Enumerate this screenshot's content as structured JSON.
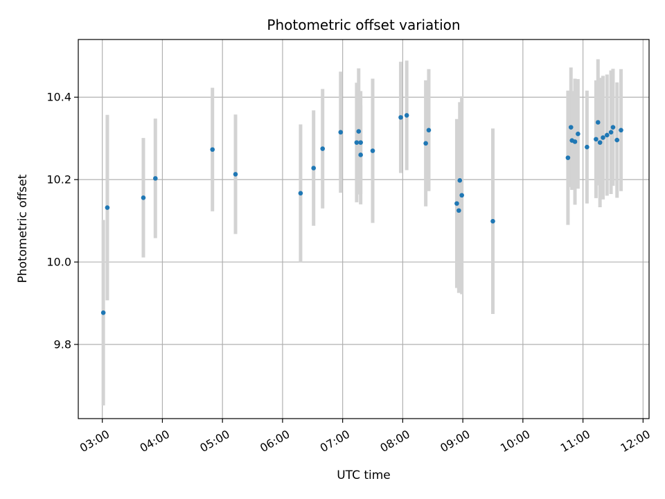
{
  "chart_data": {
    "type": "scatter",
    "title": "Photometric offset variation",
    "xlabel": "UTC time",
    "ylabel": "Photometric offset",
    "xlim": [
      "02:36",
      "12:06"
    ],
    "ylim": [
      9.62,
      10.54
    ],
    "grid": true,
    "x_ticks": [
      "03:00",
      "04:00",
      "05:00",
      "06:00",
      "07:00",
      "08:00",
      "09:00",
      "10:00",
      "11:00",
      "12:00"
    ],
    "y_ticks": [
      "9.8",
      "10.0",
      "10.2",
      "10.4"
    ],
    "marker_color": "#1f77b4",
    "errorbar_color": "#d3d3d3",
    "points": [
      {
        "time": "03:01",
        "y": 9.877,
        "err": 0.225
      },
      {
        "time": "03:05",
        "y": 10.132,
        "err": 0.225
      },
      {
        "time": "03:41",
        "y": 10.156,
        "err": 0.145
      },
      {
        "time": "03:53",
        "y": 10.203,
        "err": 0.145
      },
      {
        "time": "04:50",
        "y": 10.273,
        "err": 0.15
      },
      {
        "time": "05:13",
        "y": 10.213,
        "err": 0.145
      },
      {
        "time": "06:18",
        "y": 10.167,
        "err": 0.167
      },
      {
        "time": "06:31",
        "y": 10.228,
        "err": 0.14
      },
      {
        "time": "06:40",
        "y": 10.275,
        "err": 0.145
      },
      {
        "time": "06:58",
        "y": 10.315,
        "err": 0.147
      },
      {
        "time": "07:14",
        "y": 10.29,
        "err": 0.145
      },
      {
        "time": "07:16",
        "y": 10.317,
        "err": 0.153
      },
      {
        "time": "07:18",
        "y": 10.26,
        "err": 0.12
      },
      {
        "time": "07:18",
        "y": 10.29,
        "err": 0.125
      },
      {
        "time": "07:30",
        "y": 10.27,
        "err": 0.175
      },
      {
        "time": "07:58",
        "y": 10.351,
        "err": 0.135
      },
      {
        "time": "08:04",
        "y": 10.356,
        "err": 0.133
      },
      {
        "time": "08:23",
        "y": 10.288,
        "err": 0.153
      },
      {
        "time": "08:26",
        "y": 10.32,
        "err": 0.148
      },
      {
        "time": "08:54",
        "y": 10.142,
        "err": 0.205
      },
      {
        "time": "08:56",
        "y": 10.125,
        "err": 0.2
      },
      {
        "time": "08:57",
        "y": 10.198,
        "err": 0.19
      },
      {
        "time": "08:59",
        "y": 10.162,
        "err": 0.24
      },
      {
        "time": "09:30",
        "y": 10.099,
        "err": 0.225
      },
      {
        "time": "10:45",
        "y": 10.253,
        "err": 0.163
      },
      {
        "time": "10:48",
        "y": 10.327,
        "err": 0.145
      },
      {
        "time": "10:49",
        "y": 10.295,
        "err": 0.12
      },
      {
        "time": "10:52",
        "y": 10.292,
        "err": 0.153
      },
      {
        "time": "10:55",
        "y": 10.311,
        "err": 0.133
      },
      {
        "time": "11:04",
        "y": 10.279,
        "err": 0.137
      },
      {
        "time": "11:13",
        "y": 10.298,
        "err": 0.143
      },
      {
        "time": "11:15",
        "y": 10.339,
        "err": 0.153
      },
      {
        "time": "11:17",
        "y": 10.29,
        "err": 0.157
      },
      {
        "time": "11:20",
        "y": 10.302,
        "err": 0.15
      },
      {
        "time": "11:24",
        "y": 10.308,
        "err": 0.147
      },
      {
        "time": "11:28",
        "y": 10.315,
        "err": 0.15
      },
      {
        "time": "11:30",
        "y": 10.327,
        "err": 0.142
      },
      {
        "time": "11:34",
        "y": 10.296,
        "err": 0.14
      },
      {
        "time": "11:38",
        "y": 10.32,
        "err": 0.148
      }
    ]
  }
}
